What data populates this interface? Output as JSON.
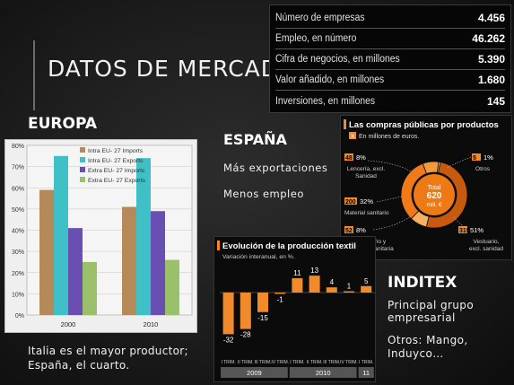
{
  "title": "DATOS DE MERCADO",
  "europa": {
    "heading": "EUROPA",
    "caption_line1": "Italia es el mayor productor;",
    "caption_line2": "España, el cuarto."
  },
  "espana": {
    "heading": "ESPAÑA",
    "items": [
      "Más exportaciones",
      "Menos empleo"
    ]
  },
  "inditex": {
    "heading": "INDITEX",
    "line1": "Principal grupo",
    "line2": "empresarial",
    "line3": "Otros: Mango,",
    "line4": "Induyco…"
  },
  "stats": [
    {
      "label": "Número de empresas",
      "value": "4.456"
    },
    {
      "label": "Empleo, en número",
      "value": "46.262"
    },
    {
      "label": "Cifra de negocios, en millones",
      "value": "5.390"
    },
    {
      "label": "Valor añadido, en millones",
      "value": "1.680"
    },
    {
      "label": "Inversiones, en millones",
      "value": "145"
    }
  ],
  "compras": {
    "title": "Las compras públicas por productos",
    "subtitle_badge": "X",
    "subtitle": "En millones de euros.",
    "total_label": "Total",
    "total_value": "620",
    "total_unit": "mill. €",
    "segments": [
      {
        "amount": "48",
        "pct": "8%",
        "name": "Lencería, excl. Sanidad",
        "color": "#f39a3a"
      },
      {
        "amount": "5",
        "pct": "1%",
        "name": "Otros",
        "color": "#ffd9a8"
      },
      {
        "amount": "200",
        "pct": "32%",
        "name": "Material sanitario",
        "color": "#f07a1a"
      },
      {
        "amount": "52",
        "pct": "8%",
        "name": "Vestuario y lencería sanitaria",
        "color": "#f5b062"
      },
      {
        "amount": "315",
        "pct": "51%",
        "name": "Vestuario, excl. sanidad",
        "color": "#c85a10"
      }
    ]
  },
  "chart_data": [
    {
      "type": "bar",
      "title": "",
      "categories": [
        "2000",
        "2010"
      ],
      "ylim": [
        0,
        80
      ],
      "yticks": [
        "0%",
        "10%",
        "20%",
        "30%",
        "40%",
        "50%",
        "60%",
        "70%",
        "80%"
      ],
      "series": [
        {
          "name": "Intra EU- 27 Imports",
          "values": [
            59,
            51
          ],
          "color": "#b48a58"
        },
        {
          "name": "Intra EU- 27 Exports",
          "values": [
            75,
            74
          ],
          "color": "#3fbfc6"
        },
        {
          "name": "Extra EU- 27 Imports",
          "values": [
            41,
            49
          ],
          "color": "#6a4fb3"
        },
        {
          "name": "Extra EU- 27 Exports",
          "values": [
            25,
            26
          ],
          "color": "#9bc06a"
        }
      ],
      "legend": "top-right",
      "grid": true
    },
    {
      "type": "bar",
      "title": "Evolución de la producción textil",
      "subtitle": "Variación interanual, en %.",
      "categories": [
        "I TRIM.",
        "II TRIM.",
        "III TRIM.",
        "IV TRIM.",
        "I TRIM.",
        "II TRIM.",
        "III TRIM.",
        "IV TRIM.",
        "I TRIM."
      ],
      "groups": [
        "2009",
        "2010",
        "11"
      ],
      "values": [
        -32,
        -28,
        -15,
        -1,
        11,
        13,
        4,
        1,
        5
      ],
      "color": "#f08a2a"
    }
  ]
}
